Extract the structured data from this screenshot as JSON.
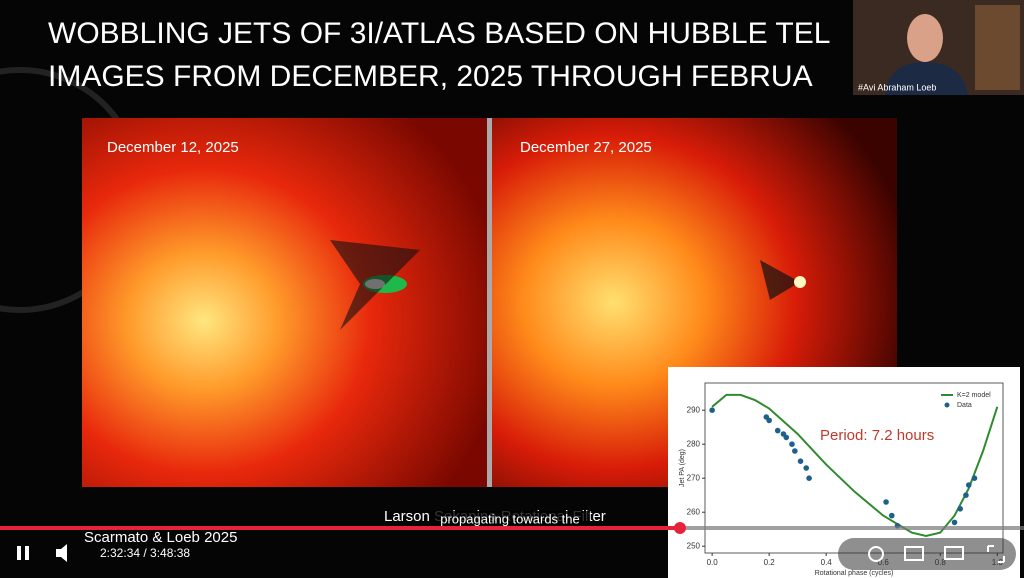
{
  "slide": {
    "title_lines": [
      "WOBBLING JETS OF 3I/ATLAS BASED ON HUBBLE TEL",
      "IMAGES FROM DECEMBER, 2025 THROUGH FEBRUA"
    ],
    "image_labels": [
      "December 12, 2025",
      "December 27, 2025"
    ],
    "caption": "Larson Sekanina Rotational Filter",
    "credit": "Scarmato & Loeb 2025"
  },
  "webcam": {
    "name": "#Avi Abraham Loeb"
  },
  "player": {
    "subtitle": "propagating towards the",
    "time": "2:32:34 / 3:48:38"
  },
  "chart_data": {
    "type": "line",
    "annotation": "Period: 7.2 hours",
    "xlabel": "Rotational phase (cycles)",
    "ylabel": "Jet PA (deg)",
    "xlim": [
      -0.025,
      1.02
    ],
    "ylim": [
      248,
      298
    ],
    "xticks": [
      {
        "value": 0,
        "label": "0.0"
      },
      0.2,
      0.4,
      0.6,
      0.8,
      {
        "value": 1,
        "label": "1.0"
      }
    ],
    "yticks": [
      250,
      260,
      270,
      280,
      290
    ],
    "legend": "upper right",
    "series": [
      {
        "name": "K=2 model",
        "color": "#2e8b2e",
        "kind": "line",
        "x": [
          0,
          0.05,
          0.1,
          0.15,
          0.2,
          0.3,
          0.4,
          0.5,
          0.6,
          0.7,
          0.75,
          0.8,
          0.85,
          0.9,
          0.95,
          1.0
        ],
        "values": [
          291,
          294.5,
          294.5,
          293,
          290.5,
          283,
          274,
          266,
          259,
          254,
          253,
          254,
          259,
          267,
          278,
          291
        ]
      },
      {
        "name": "Data",
        "color": "#1f5f8b",
        "kind": "scatter",
        "x": [
          0.0,
          0.19,
          0.2,
          0.23,
          0.25,
          0.26,
          0.28,
          0.29,
          0.31,
          0.33,
          0.34,
          0.61,
          0.63,
          0.65,
          0.85,
          0.87,
          0.89,
          0.9,
          0.92
        ],
        "values": [
          290,
          288,
          287,
          284,
          283,
          282,
          280,
          278,
          275,
          273,
          270,
          263,
          259,
          256,
          257,
          261,
          265,
          268,
          270
        ]
      }
    ]
  }
}
